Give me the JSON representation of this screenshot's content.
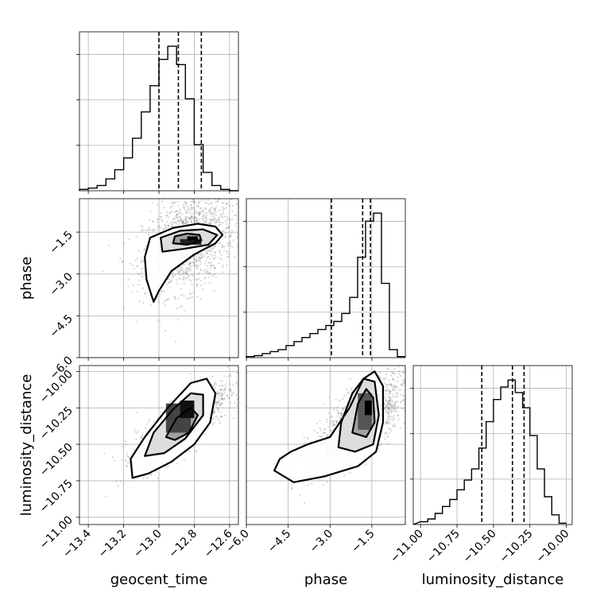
{
  "chart_data": {
    "type": "corner",
    "parameters": [
      "geocent_time",
      "phase",
      "luminosity_distance"
    ],
    "axes": {
      "geocent_time": {
        "label": "geocent_time",
        "range": [
          -13.45,
          -12.55
        ],
        "ticks": [
          -13.4,
          -13.2,
          -13.0,
          -12.8,
          -12.6
        ],
        "tick_labels": [
          "−13.4",
          "−13.2",
          "−13.0",
          "−12.8",
          "−12.6"
        ]
      },
      "phase": {
        "label": "phase",
        "range": [
          -6.0,
          -0.3
        ],
        "ticks": [
          -6.0,
          -4.5,
          -3.0,
          -1.5
        ],
        "tick_labels": [
          "−6.0",
          "−4.5",
          "−3.0",
          "−1.5"
        ]
      },
      "luminosity_distance": {
        "label": "luminosity_distance",
        "range": [
          -11.05,
          -9.96
        ],
        "ticks": [
          -11.0,
          -10.75,
          -10.5,
          -10.25,
          -10.0
        ],
        "tick_labels": [
          "−11.00",
          "−10.75",
          "−10.50",
          "−10.25",
          "−10.00"
        ]
      }
    },
    "quantiles": {
      "geocent_time": [
        -13.0,
        -12.89,
        -12.76
      ],
      "phase": [
        -2.95,
        -1.83,
        -1.55
      ],
      "luminosity_distance": [
        -10.58,
        -10.37,
        -10.29
      ]
    },
    "histograms": {
      "geocent_time": {
        "bin_width": 0.05,
        "bin_edges_start": -13.45,
        "counts": [
          1,
          2,
          4,
          9,
          16,
          25,
          40,
          60,
          80,
          100,
          110,
          96,
          70,
          35,
          14,
          4,
          1,
          0
        ]
      },
      "phase": {
        "bin_width": 0.285,
        "bin_edges_start": -6.0,
        "counts": [
          0.5,
          1,
          2,
          3,
          4,
          6,
          8,
          10,
          12,
          14,
          16,
          18,
          22,
          30,
          50,
          68,
          72,
          37,
          4,
          0.5
        ]
      },
      "luminosity_distance": {
        "bin_width": 0.05,
        "bin_edges_start": -11.0,
        "counts": [
          2,
          4,
          8,
          13,
          18,
          25,
          32,
          40,
          55,
          74,
          90,
          99,
          104,
          95,
          84,
          64,
          40,
          20,
          7,
          1
        ]
      }
    },
    "grid": true
  }
}
